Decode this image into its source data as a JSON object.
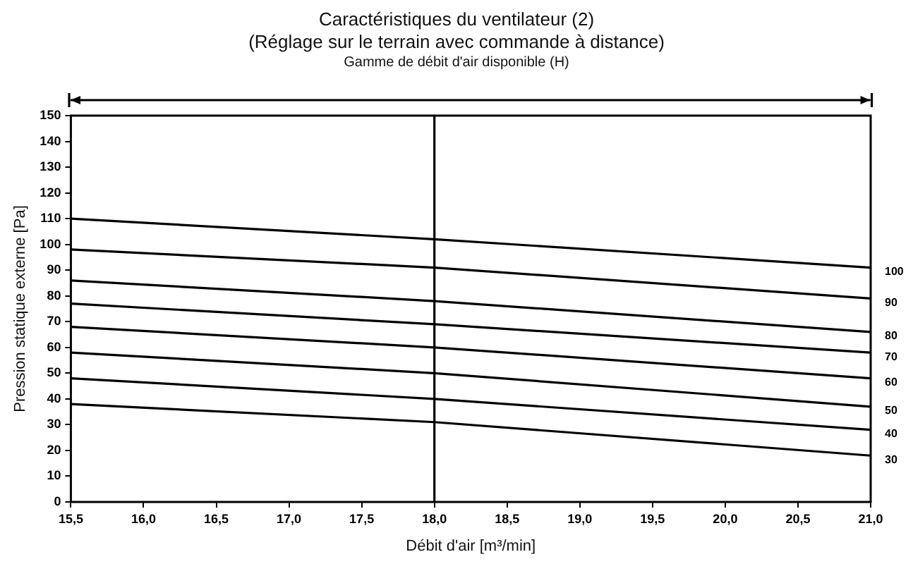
{
  "chart_data": {
    "type": "line",
    "title": "Caractéristiques du ventilateur (2)",
    "subtitle": "(Réglage sur le terrain avec commande à distance)",
    "xlabel": "Débit d'air [m³/min]",
    "ylabel": "Pression statique externe [Pa]",
    "annotations": [
      "Gamme de débit d'air disponible (H)"
    ],
    "x": [
      15.5,
      18.0,
      21.0
    ],
    "series": [
      {
        "name": "100",
        "color": "#000000",
        "values": [
          110,
          102,
          91
        ]
      },
      {
        "name": "90",
        "color": "#000000",
        "values": [
          98,
          91,
          79
        ]
      },
      {
        "name": "80",
        "color": "#000000",
        "values": [
          86,
          78,
          66
        ]
      },
      {
        "name": "70",
        "color": "#000000",
        "values": [
          77,
          69,
          58
        ]
      },
      {
        "name": "60",
        "color": "#000000",
        "values": [
          68,
          60,
          48
        ]
      },
      {
        "name": "50",
        "color": "#000000",
        "values": [
          58,
          50,
          37
        ]
      },
      {
        "name": "40",
        "color": "#000000",
        "values": [
          48,
          40,
          28
        ]
      },
      {
        "name": "30",
        "color": "#000000",
        "values": [
          38,
          31,
          18
        ]
      }
    ],
    "xlim": [
      15.5,
      21.0
    ],
    "xticks": [
      {
        "value": 15.5,
        "label": "15,5"
      },
      {
        "value": 16,
        "label": "16,0"
      },
      {
        "value": 16.5,
        "label": "16,5"
      },
      {
        "value": 17,
        "label": "17,0"
      },
      {
        "value": 17.5,
        "label": "17,5"
      },
      {
        "value": 18,
        "label": "18,0"
      },
      {
        "value": 18.5,
        "label": "18,5"
      },
      {
        "value": 19,
        "label": "19,0"
      },
      {
        "value": 19.5,
        "label": "19,5"
      },
      {
        "value": 20,
        "label": "20,0"
      },
      {
        "value": 20.5,
        "label": "20,5"
      },
      {
        "value": 21,
        "label": "21,0"
      }
    ],
    "ylim": [
      0,
      150
    ],
    "yticks": [
      0,
      10,
      20,
      30,
      40,
      50,
      60,
      70,
      80,
      90,
      100,
      110,
      120,
      130,
      140,
      150
    ],
    "ref_lines": [
      {
        "axis": "x",
        "value": 18.0
      }
    ],
    "grid": false,
    "legend": false,
    "marker": "none",
    "line_style": "solid"
  }
}
